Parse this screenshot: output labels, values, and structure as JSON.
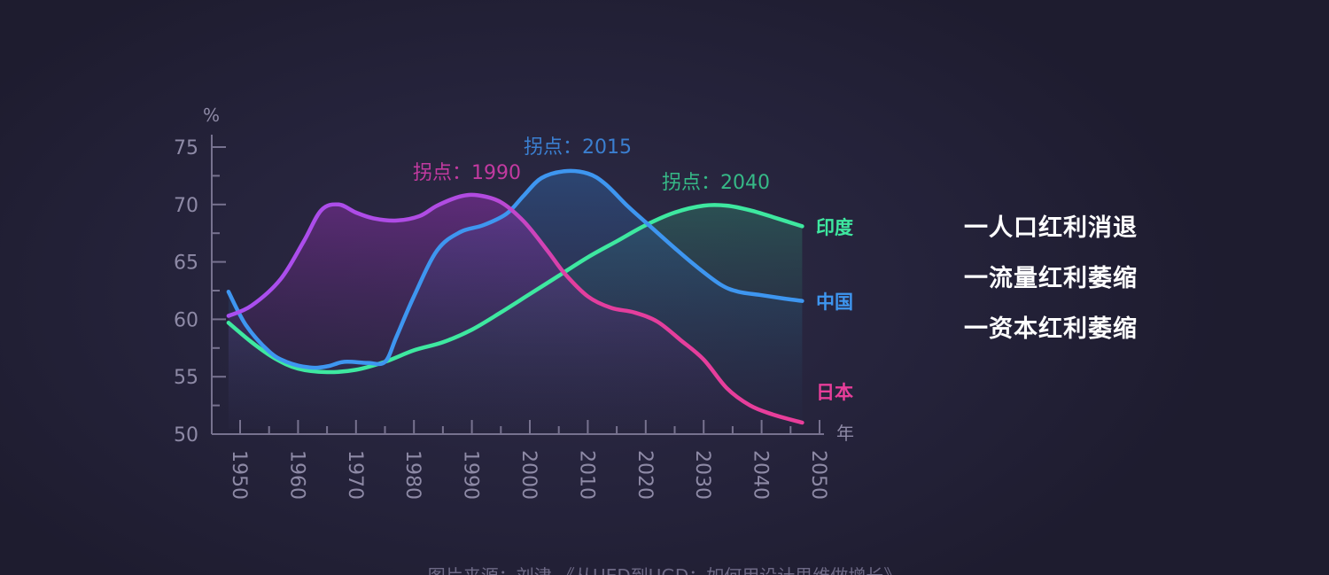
{
  "chart_data": {
    "type": "line",
    "title": "",
    "ylabel": "%",
    "xlabel": "年",
    "xlim": [
      1946,
      2054
    ],
    "ylim": [
      50,
      75
    ],
    "yticks": [
      50,
      55,
      60,
      65,
      70,
      75
    ],
    "xticks": [
      1950,
      1960,
      1970,
      1980,
      1990,
      2000,
      2010,
      2020,
      2030,
      2040,
      2050
    ],
    "grid": false,
    "legend": "right-end-labels",
    "series": [
      {
        "name": "日本",
        "color": "#e83e9a",
        "color_start": "#a94ef0",
        "fill": "#7c2f9a",
        "x": [
          1948,
          1952,
          1957,
          1961,
          1964,
          1967,
          1970,
          1973,
          1977,
          1981,
          1984,
          1988,
          1991,
          1995,
          1999,
          2003,
          2006,
          2010,
          2014,
          2018,
          2022,
          2026,
          2030,
          2034,
          2038,
          2042,
          2047
        ],
        "y": [
          60.3,
          61.2,
          63.5,
          66.8,
          69.5,
          70.0,
          69.3,
          68.8,
          68.6,
          69.0,
          69.9,
          70.7,
          70.8,
          70.2,
          68.5,
          66.0,
          64.0,
          62.0,
          61.0,
          60.6,
          59.8,
          58.2,
          56.5,
          54.0,
          52.5,
          51.7,
          51.0
        ]
      },
      {
        "name": "中国",
        "color": "#3e96f0",
        "fill": "#2b4c7e",
        "x": [
          1948,
          1951,
          1955,
          1958,
          1962,
          1965,
          1968,
          1972,
          1975,
          1977,
          1980,
          1984,
          1988,
          1992,
          1996,
          1999,
          2002,
          2006,
          2010,
          2013,
          2017,
          2021,
          2025,
          2029,
          2033,
          2036,
          2040,
          2044,
          2047
        ],
        "y": [
          62.4,
          59.5,
          57.2,
          56.3,
          55.8,
          55.9,
          56.3,
          56.2,
          56.3,
          58.5,
          62.0,
          66.0,
          67.6,
          68.2,
          69.2,
          70.8,
          72.3,
          72.9,
          72.7,
          71.8,
          69.8,
          68.0,
          66.2,
          64.5,
          63.0,
          62.4,
          62.1,
          61.8,
          61.6
        ]
      },
      {
        "name": "印度",
        "color": "#3ee8a0",
        "fill": "#2a6a5a",
        "x": [
          1948,
          1952,
          1956,
          1960,
          1965,
          1970,
          1975,
          1980,
          1985,
          1990,
          1995,
          2000,
          2005,
          2010,
          2015,
          2020,
          2025,
          2030,
          2034,
          2038,
          2042,
          2047
        ],
        "y": [
          59.7,
          58.0,
          56.6,
          55.7,
          55.4,
          55.6,
          56.3,
          57.3,
          58.0,
          59.1,
          60.6,
          62.2,
          63.8,
          65.4,
          66.8,
          68.2,
          69.3,
          69.9,
          69.9,
          69.5,
          68.9,
          68.1
        ]
      }
    ],
    "annotations": [
      {
        "label": "拐点：1990",
        "color": "#c23aa0",
        "x": 1990
      },
      {
        "label": "拐点：2015",
        "color": "#3b7fd0",
        "x": 2015
      },
      {
        "label": "拐点：2040",
        "color": "#36b987",
        "x": 2040
      }
    ]
  },
  "bullets": [
    "一人口红利消退",
    "一流量红利萎缩",
    "一资本红利萎缩"
  ],
  "source_note": "图片来源：刘津 《从UED到UGD：如何用设计思维做增长》",
  "colors": {
    "axis": "#77728f",
    "tick_label": "#8e8aa6",
    "background": "#24223a"
  }
}
